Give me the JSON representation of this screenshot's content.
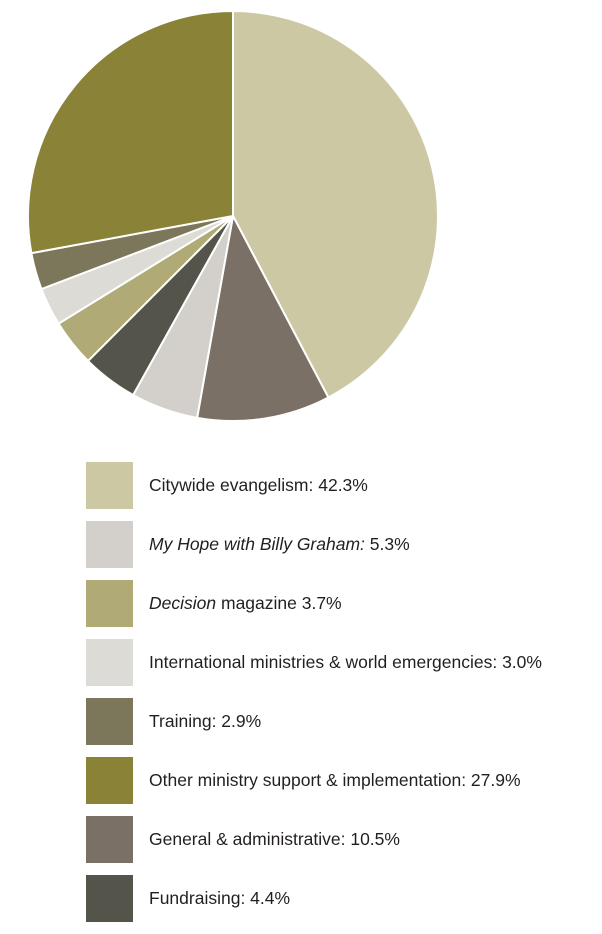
{
  "chart_data": {
    "type": "pie",
    "slices": [
      {
        "label": "Citywide evangelism",
        "value": 42.3,
        "color": "#cdc8a4"
      },
      {
        "label": "General & administrative",
        "value": 10.5,
        "color": "#7b7065"
      },
      {
        "label": "My Hope with Billy Graham",
        "value": 5.3,
        "color": "#d3d0cb"
      },
      {
        "label": "Fundraising",
        "value": 4.4,
        "color": "#55544a"
      },
      {
        "label": "Decision magazine",
        "value": 3.7,
        "color": "#b0aa76"
      },
      {
        "label": "International ministries & world emergencies",
        "value": 3.0,
        "color": "#dddbd5"
      },
      {
        "label": "Training",
        "value": 2.9,
        "color": "#7c775a"
      },
      {
        "label": "Other ministry support & implementation",
        "value": 27.9,
        "color": "#8a8236"
      }
    ],
    "legend": [
      {
        "italic": "",
        "text": "Citywide evangelism: 42.3%",
        "color": "#cdc8a4"
      },
      {
        "italic": "My Hope with Billy Graham:",
        "text": " 5.3%",
        "color": "#d3d0cb"
      },
      {
        "italic": "Decision",
        "text": " magazine 3.7%",
        "color": "#b0aa76"
      },
      {
        "italic": "",
        "text": "International ministries & world emergencies: 3.0%",
        "color": "#dddbd5"
      },
      {
        "italic": "",
        "text": "Training: 2.9%",
        "color": "#7c775a"
      },
      {
        "italic": "",
        "text": "Other ministry support & implementation: 27.9%",
        "color": "#8a8236"
      },
      {
        "italic": "",
        "text": "General & administrative: 10.5%",
        "color": "#7b7065"
      },
      {
        "italic": "",
        "text": "Fundraising: 4.4%",
        "color": "#55544a"
      }
    ],
    "legend_placement": "bottom",
    "title": "",
    "xlabel": "",
    "ylabel": ""
  }
}
